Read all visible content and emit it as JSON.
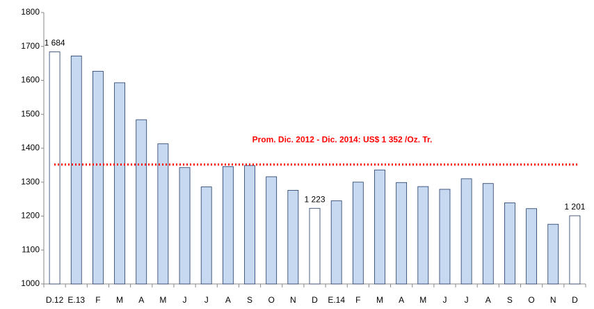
{
  "chart_data": {
    "type": "bar",
    "categories": [
      "D.12",
      "E.13",
      "F",
      "M",
      "A",
      "M",
      "J",
      "J",
      "A",
      "S",
      "O",
      "N",
      "D",
      "E.14",
      "F",
      "M",
      "A",
      "M",
      "J",
      "J",
      "A",
      "S",
      "O",
      "N",
      "D"
    ],
    "values": [
      1684,
      1672,
      1627,
      1593,
      1484,
      1413,
      1343,
      1286,
      1346,
      1349,
      1316,
      1276,
      1223,
      1245,
      1300,
      1336,
      1299,
      1287,
      1279,
      1310,
      1296,
      1239,
      1222,
      1176,
      1201
    ],
    "value_labels": [
      "1 684",
      null,
      null,
      null,
      null,
      null,
      null,
      null,
      null,
      null,
      null,
      null,
      "1 223",
      null,
      null,
      null,
      null,
      null,
      null,
      null,
      null,
      null,
      null,
      null,
      "1 201"
    ],
    "colors": [
      "#ffffff",
      "#c6d9f1",
      "#c6d9f1",
      "#c6d9f1",
      "#c6d9f1",
      "#c6d9f1",
      "#c6d9f1",
      "#c6d9f1",
      "#c6d9f1",
      "#c6d9f1",
      "#c6d9f1",
      "#c6d9f1",
      "#ffffff",
      "#c6d9f1",
      "#c6d9f1",
      "#c6d9f1",
      "#c6d9f1",
      "#c6d9f1",
      "#c6d9f1",
      "#c6d9f1",
      "#c6d9f1",
      "#c6d9f1",
      "#c6d9f1",
      "#c6d9f1",
      "#ffffff"
    ],
    "edge_color": "#1f3864",
    "ylim": [
      1000,
      1800
    ],
    "yticks": [
      1000,
      1100,
      1200,
      1300,
      1400,
      1500,
      1600,
      1700,
      1800
    ],
    "grid": false,
    "reference_line": {
      "value": 1352,
      "label": "Prom. Dic. 2012 - Dic. 2014: US$ 1 352 /Oz. Tr.",
      "color": "#ff0000"
    }
  }
}
